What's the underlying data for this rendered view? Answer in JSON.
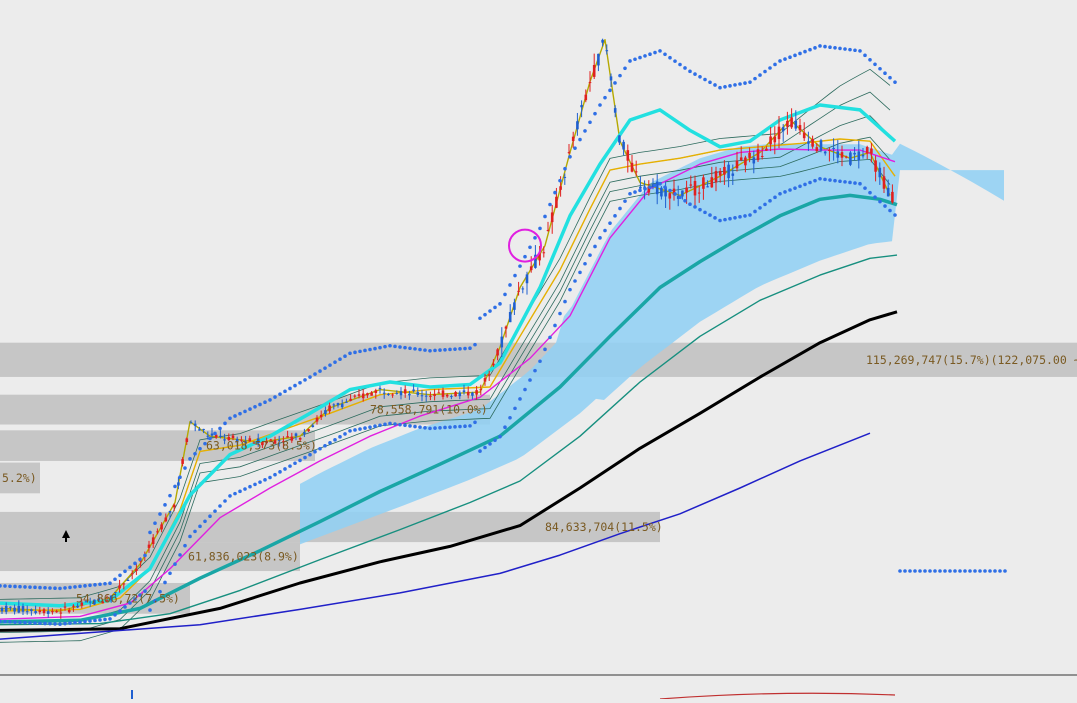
{
  "chart_data": {
    "type": "line",
    "title": "",
    "xlabel": "",
    "ylabel": "",
    "grid": false,
    "legend": "none",
    "y_scale": "log",
    "ylim": [
      44000,
      420000
    ],
    "x": [
      0,
      900
    ],
    "volume_profile": [
      {
        "label": "115,269,747(15.7%)(122,075.00 ~",
        "y_low": 122075,
        "y_high": 137000
      },
      {
        "label": "78,558,791(10.0%)",
        "y_low": 104000,
        "y_high": 115000
      },
      {
        "label": "63,018,573(8.5%)",
        "y_low": 92000,
        "y_high": 102000
      },
      {
        "label": "5.2%)",
        "y_low": 82500,
        "y_high": 91500
      },
      {
        "label": "84,633,704(11.5%)",
        "y_low": 70000,
        "y_high": 77500
      },
      {
        "label": "61,836,023(8.9%)",
        "y_low": 63500,
        "y_high": 70000
      },
      {
        "label": "54,866,72(7.5%)",
        "y_low": 55000,
        "y_high": 61000
      }
    ],
    "series": [
      {
        "key": "ma_fast",
        "color": "#b5a800",
        "points": [
          [
            0,
            56000
          ],
          [
            60,
            55500
          ],
          [
            110,
            58000
          ],
          [
            140,
            65000
          ],
          [
            175,
            80000
          ],
          [
            190,
            105000
          ],
          [
            210,
            100000
          ],
          [
            260,
            98000
          ],
          [
            300,
            100000
          ],
          [
            330,
            110000
          ],
          [
            380,
            117000
          ],
          [
            430,
            115000
          ],
          [
            480,
            116000
          ],
          [
            500,
            135000
          ],
          [
            520,
            165000
          ],
          [
            545,
            190000
          ],
          [
            570,
            260000
          ],
          [
            590,
            330000
          ],
          [
            605,
            380000
          ],
          [
            620,
            270000
          ],
          [
            640,
            235000
          ],
          [
            680,
            225000
          ],
          [
            720,
            240000
          ],
          [
            760,
            260000
          ],
          [
            790,
            290000
          ],
          [
            820,
            265000
          ],
          [
            850,
            255000
          ],
          [
            870,
            260000
          ],
          [
            890,
            225000
          ]
        ]
      },
      {
        "key": "ma_yellow",
        "color": "#e6b000",
        "points": [
          [
            0,
            55500
          ],
          [
            80,
            55800
          ],
          [
            120,
            58000
          ],
          [
            150,
            64000
          ],
          [
            180,
            78000
          ],
          [
            200,
            95000
          ],
          [
            240,
            97000
          ],
          [
            290,
            103000
          ],
          [
            330,
            108000
          ],
          [
            380,
            115000
          ],
          [
            430,
            117000
          ],
          [
            490,
            118000
          ],
          [
            520,
            140000
          ],
          [
            560,
            175000
          ],
          [
            590,
            215000
          ],
          [
            610,
            245000
          ],
          [
            640,
            250000
          ],
          [
            680,
            255000
          ],
          [
            720,
            262000
          ],
          [
            760,
            265000
          ],
          [
            800,
            268000
          ],
          [
            840,
            272000
          ],
          [
            870,
            270000
          ],
          [
            895,
            240000
          ]
        ]
      },
      {
        "key": "ma_cyan",
        "color": "#22e0e0",
        "width": 3.5,
        "points": [
          [
            0,
            57000
          ],
          [
            60,
            56500
          ],
          [
            110,
            57500
          ],
          [
            150,
            64000
          ],
          [
            190,
            82000
          ],
          [
            230,
            94000
          ],
          [
            270,
            100000
          ],
          [
            310,
            108000
          ],
          [
            350,
            117000
          ],
          [
            390,
            120000
          ],
          [
            430,
            118000
          ],
          [
            470,
            119000
          ],
          [
            500,
            128000
          ],
          [
            540,
            165000
          ],
          [
            570,
            210000
          ],
          [
            600,
            250000
          ],
          [
            630,
            290000
          ],
          [
            660,
            300000
          ],
          [
            690,
            280000
          ],
          [
            720,
            265000
          ],
          [
            750,
            270000
          ],
          [
            780,
            290000
          ],
          [
            820,
            305000
          ],
          [
            860,
            300000
          ],
          [
            895,
            270000
          ]
        ]
      },
      {
        "key": "ma_magenta",
        "color": "#e020e0",
        "points": [
          [
            0,
            54000
          ],
          [
            80,
            54500
          ],
          [
            130,
            57000
          ],
          [
            170,
            64000
          ],
          [
            220,
            76000
          ],
          [
            270,
            84000
          ],
          [
            320,
            92000
          ],
          [
            370,
            100000
          ],
          [
            420,
            107000
          ],
          [
            480,
            114000
          ],
          [
            530,
            130000
          ],
          [
            570,
            150000
          ],
          [
            610,
            195000
          ],
          [
            650,
            230000
          ],
          [
            700,
            250000
          ],
          [
            740,
            260000
          ],
          [
            780,
            263000
          ],
          [
            820,
            262000
          ],
          [
            860,
            262000
          ],
          [
            895,
            252000
          ]
        ]
      },
      {
        "key": "ma_teal_thick",
        "color": "#1aa6a6",
        "width": 3.5,
        "points": [
          [
            0,
            53500
          ],
          [
            80,
            53800
          ],
          [
            140,
            56000
          ],
          [
            200,
            62000
          ],
          [
            260,
            68000
          ],
          [
            320,
            75000
          ],
          [
            380,
            83000
          ],
          [
            440,
            91000
          ],
          [
            500,
            100000
          ],
          [
            560,
            118000
          ],
          [
            610,
            140000
          ],
          [
            660,
            165000
          ],
          [
            700,
            180000
          ],
          [
            740,
            195000
          ],
          [
            780,
            210000
          ],
          [
            820,
            222000
          ],
          [
            850,
            225000
          ],
          [
            880,
            222000
          ],
          [
            897,
            218000
          ]
        ]
      },
      {
        "key": "ma_darkteal",
        "color": "#178f7f",
        "points": [
          [
            0,
            53000
          ],
          [
            100,
            53200
          ],
          [
            170,
            55000
          ],
          [
            240,
            59500
          ],
          [
            320,
            66000
          ],
          [
            400,
            73000
          ],
          [
            470,
            80000
          ],
          [
            520,
            86000
          ],
          [
            580,
            100000
          ],
          [
            640,
            120000
          ],
          [
            700,
            140000
          ],
          [
            760,
            158000
          ],
          [
            820,
            172000
          ],
          [
            870,
            182000
          ],
          [
            897,
            184000
          ]
        ]
      },
      {
        "key": "ma_black",
        "color": "#000000",
        "width": 3,
        "points": [
          [
            0,
            52000
          ],
          [
            120,
            52300
          ],
          [
            220,
            56000
          ],
          [
            300,
            61000
          ],
          [
            380,
            65500
          ],
          [
            450,
            69000
          ],
          [
            520,
            74000
          ],
          [
            580,
            84000
          ],
          [
            640,
            96000
          ],
          [
            700,
            108000
          ],
          [
            760,
            122000
          ],
          [
            820,
            137000
          ],
          [
            870,
            148000
          ],
          [
            897,
            152000
          ]
        ]
      },
      {
        "key": "ma_blue",
        "color": "#2020c8",
        "width": 1.5,
        "points": [
          [
            0,
            50500
          ],
          [
            200,
            53000
          ],
          [
            300,
            55800
          ],
          [
            400,
            59000
          ],
          [
            500,
            63000
          ],
          [
            560,
            67000
          ],
          [
            620,
            72000
          ],
          [
            680,
            77000
          ],
          [
            740,
            84000
          ],
          [
            800,
            92000
          ],
          [
            870,
            101000
          ]
        ]
      }
    ]
  }
}
